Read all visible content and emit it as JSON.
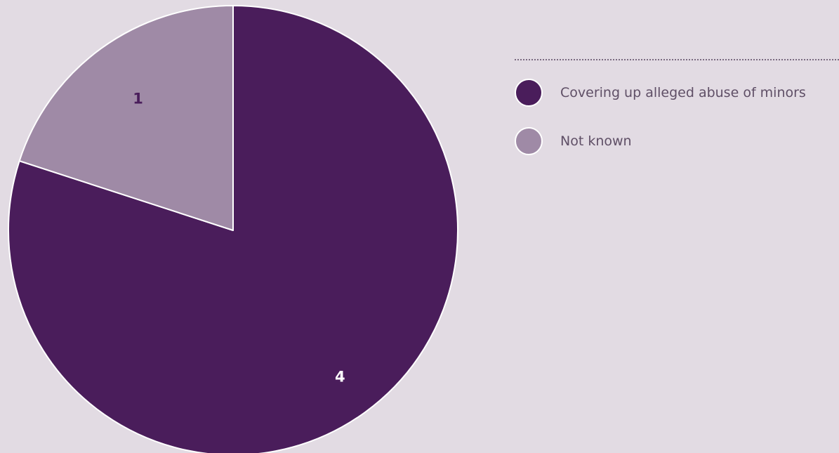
{
  "chart_data": {
    "type": "pie",
    "categories": [
      "Covering up alleged abuse of minors",
      "Not known"
    ],
    "values": [
      4,
      1
    ],
    "colors": [
      "#4a1d5b",
      "#9f8aa6"
    ],
    "label_colors": [
      "#ffffff",
      "#4a1d5b"
    ],
    "start_angle_deg": 0,
    "direction": "clockwise",
    "legend_position": "right"
  }
}
